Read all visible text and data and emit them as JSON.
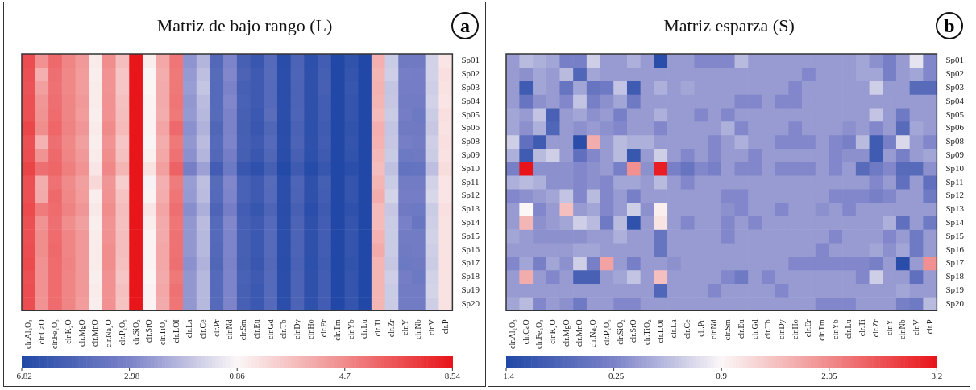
{
  "chart_data": [
    {
      "type": "heatmap",
      "title": "Matriz de bajo rango (L)",
      "annotations": [
        "a"
      ],
      "categories": [
        "clr.Al₂O₃",
        "clr.CaO",
        "clr.Fe₂O₃",
        "clr.K₂O",
        "clr.MgO",
        "clr.MnO",
        "clr.Na₂O",
        "clr.P₂O₅",
        "clr.SiO₂",
        "clr.SrO",
        "clr.TiO₂",
        "clr.LOI",
        "clr.La",
        "clr.Ce",
        "clr.Pr",
        "clr.Nd",
        "clr.Sm",
        "clr.Eu",
        "clr.Gd",
        "clr.Tb",
        "clr.Dy",
        "clr.Ho",
        "clr.Er",
        "clr.Tm",
        "clr.Yb",
        "clr.Lu",
        "clr.Ti",
        "clr.Zr",
        "clr.Y",
        "clr.Nb",
        "clr.V",
        "clr.P"
      ],
      "y_categories": [
        "Sp01",
        "Sp02",
        "Sp03",
        "Sp04",
        "Sp05",
        "Sp06",
        "Sp08",
        "Sp09",
        "Sp10",
        "Sp11",
        "Sp12",
        "Sp13",
        "Sp14",
        "Sp15",
        "Sp16",
        "Sp17",
        "Sp18",
        "Sp19",
        "Sp20"
      ],
      "cells": [
        [
          6.7,
          4.5,
          5.8,
          4.9,
          4.2,
          1.3,
          4.6,
          2.9,
          8.5,
          1.2,
          3.7,
          5.4,
          -2.4,
          -1.3,
          -4.7,
          -2.9,
          -5.2,
          -5.8,
          -4.6,
          -6.5,
          -5.0,
          -6.3,
          -5.4,
          -6.8,
          -6.1,
          -6.8,
          3.4,
          -0.6,
          -3.5,
          -3.5,
          -0.4,
          1.5
        ],
        [
          6.6,
          3.4,
          5.6,
          4.8,
          4.1,
          1.2,
          4.4,
          2.6,
          8.5,
          0.8,
          3.5,
          5.3,
          -2.2,
          -1.0,
          -4.5,
          -2.8,
          -5.0,
          -5.6,
          -4.5,
          -6.4,
          -4.9,
          -6.2,
          -5.3,
          -6.8,
          -6.0,
          -6.8,
          3.2,
          -0.5,
          -3.2,
          -3.3,
          -0.4,
          1.7
        ],
        [
          6.5,
          4.0,
          5.5,
          4.8,
          4.1,
          1.3,
          4.4,
          2.6,
          8.5,
          0.9,
          3.6,
          5.3,
          -2.1,
          -0.8,
          -4.6,
          -3.0,
          -5.2,
          -5.6,
          -4.6,
          -6.4,
          -5.0,
          -6.2,
          -5.2,
          -6.8,
          -5.9,
          -6.8,
          3.3,
          -0.8,
          -3.3,
          -3.3,
          -0.5,
          1.6
        ],
        [
          6.6,
          4.3,
          5.6,
          4.9,
          4.2,
          1.3,
          4.5,
          2.8,
          8.5,
          1.0,
          3.6,
          5.4,
          -2.3,
          -1.1,
          -4.6,
          -2.8,
          -5.1,
          -5.6,
          -4.6,
          -6.4,
          -5.0,
          -6.2,
          -5.4,
          -6.8,
          -6.0,
          -6.8,
          3.2,
          -0.7,
          -3.4,
          -3.4,
          -0.4,
          1.5
        ],
        [
          6.6,
          4.4,
          5.7,
          4.9,
          4.1,
          1.2,
          4.5,
          2.9,
          8.5,
          1.0,
          3.5,
          5.3,
          -2.2,
          -1.2,
          -4.5,
          -3.0,
          -5.2,
          -5.7,
          -4.4,
          -6.4,
          -4.9,
          -6.2,
          -5.4,
          -6.8,
          -6.0,
          -6.8,
          3.0,
          -0.6,
          -3.3,
          -3.6,
          -0.6,
          1.7
        ],
        [
          6.9,
          4.6,
          5.9,
          5.0,
          4.3,
          1.3,
          4.7,
          3.0,
          8.5,
          1.0,
          3.8,
          5.8,
          -2.5,
          -1.4,
          -4.8,
          -3.0,
          -5.3,
          -5.8,
          -4.8,
          -6.5,
          -5.1,
          -6.3,
          -5.5,
          -6.8,
          -6.1,
          -6.8,
          3.4,
          -0.8,
          -3.5,
          -3.5,
          -0.7,
          1.6
        ],
        [
          6.6,
          3.3,
          5.6,
          4.8,
          4.0,
          1.2,
          4.4,
          2.6,
          8.5,
          0.8,
          3.5,
          5.3,
          -2.3,
          -1.1,
          -4.6,
          -2.9,
          -5.2,
          -5.6,
          -4.6,
          -6.4,
          -5.0,
          -6.2,
          -5.4,
          -6.8,
          -6.0,
          -6.8,
          3.3,
          -0.7,
          -3.2,
          -3.4,
          -0.5,
          1.7
        ],
        [
          6.7,
          4.4,
          5.8,
          4.9,
          4.2,
          1.3,
          4.6,
          2.8,
          8.5,
          1.1,
          3.7,
          5.5,
          -2.5,
          -1.3,
          -4.7,
          -3.3,
          -5.3,
          -5.8,
          -4.8,
          -6.5,
          -5.2,
          -6.3,
          -5.6,
          -6.8,
          -6.1,
          -6.8,
          3.1,
          -0.6,
          -3.6,
          -3.5,
          -0.6,
          1.6
        ],
        [
          7.0,
          5.6,
          5.9,
          5.1,
          4.4,
          1.5,
          4.8,
          3.2,
          8.5,
          1.6,
          4.0,
          6.0,
          -3.2,
          -2.0,
          -5.4,
          -3.6,
          -5.8,
          -6.2,
          -5.3,
          -6.7,
          -5.6,
          -6.6,
          -5.9,
          -6.8,
          -6.4,
          -6.8,
          2.9,
          -0.9,
          -4.0,
          -3.9,
          -1.0,
          1.8
        ],
        [
          6.6,
          3.5,
          5.5,
          4.7,
          4.0,
          2.0,
          4.3,
          2.3,
          8.5,
          0.7,
          3.4,
          5.2,
          -2.1,
          -1.0,
          -4.5,
          -2.8,
          -5.1,
          -5.6,
          -4.5,
          -6.4,
          -4.9,
          -6.2,
          -5.3,
          -6.8,
          -6.0,
          -6.8,
          3.2,
          -0.6,
          -3.4,
          -3.4,
          -0.4,
          1.5
        ],
        [
          6.6,
          3.6,
          5.8,
          4.8,
          4.1,
          1.2,
          4.4,
          2.7,
          8.5,
          1.0,
          3.5,
          5.4,
          -2.2,
          -1.1,
          -4.6,
          -2.9,
          -5.1,
          -5.6,
          -4.6,
          -6.4,
          -5.0,
          -6.2,
          -5.4,
          -6.8,
          -6.0,
          -6.8,
          3.5,
          -0.3,
          -3.3,
          -3.3,
          -0.2,
          1.5
        ],
        [
          6.8,
          5.2,
          5.7,
          5.0,
          4.3,
          1.4,
          4.6,
          2.9,
          8.5,
          1.5,
          3.8,
          5.6,
          -2.6,
          -1.5,
          -4.9,
          -3.3,
          -5.4,
          -5.9,
          -4.9,
          -6.5,
          -5.2,
          -6.4,
          -5.6,
          -6.8,
          -6.2,
          -6.8,
          3.0,
          -0.7,
          -3.5,
          -3.6,
          -0.6,
          1.7
        ],
        [
          6.6,
          4.4,
          5.6,
          4.6,
          4.0,
          1.2,
          4.4,
          2.8,
          8.5,
          1.2,
          3.6,
          5.4,
          -2.3,
          -1.1,
          -4.6,
          -2.8,
          -5.2,
          -5.6,
          -4.6,
          -6.4,
          -5.0,
          -6.2,
          -5.4,
          -6.8,
          -6.0,
          -6.8,
          3.0,
          -0.6,
          -3.1,
          -3.8,
          -0.5,
          1.6
        ],
        [
          6.6,
          4.6,
          5.7,
          4.9,
          4.2,
          1.3,
          4.5,
          2.9,
          8.5,
          1.0,
          3.6,
          5.5,
          -2.3,
          -1.2,
          -4.6,
          -2.9,
          -5.2,
          -5.7,
          -4.6,
          -6.4,
          -5.0,
          -6.2,
          -5.4,
          -6.8,
          -6.0,
          -6.8,
          3.3,
          -0.6,
          -3.4,
          -3.4,
          -0.4,
          1.6
        ],
        [
          6.7,
          4.6,
          5.8,
          4.9,
          4.2,
          1.3,
          4.6,
          2.9,
          8.5,
          1.0,
          3.7,
          5.5,
          -2.3,
          -1.2,
          -4.7,
          -2.9,
          -5.2,
          -5.7,
          -4.6,
          -6.4,
          -5.0,
          -6.2,
          -5.4,
          -6.8,
          -6.0,
          -6.8,
          3.6,
          -0.6,
          -3.5,
          -3.4,
          -0.5,
          1.6
        ],
        [
          6.8,
          4.5,
          5.7,
          5.0,
          4.2,
          1.3,
          4.6,
          2.8,
          8.5,
          1.0,
          3.7,
          5.6,
          -2.5,
          -1.4,
          -4.8,
          -3.0,
          -5.3,
          -5.8,
          -4.7,
          -6.5,
          -5.1,
          -6.3,
          -5.5,
          -6.8,
          -6.1,
          -6.8,
          3.2,
          -0.7,
          -3.6,
          -3.5,
          -0.6,
          1.6
        ],
        [
          6.6,
          4.5,
          5.7,
          4.9,
          4.2,
          1.2,
          4.5,
          2.6,
          8.5,
          0.9,
          3.6,
          5.3,
          -2.3,
          -1.2,
          -4.6,
          -2.9,
          -5.1,
          -5.6,
          -4.6,
          -6.4,
          -5.0,
          -6.2,
          -5.4,
          -6.8,
          -6.0,
          -6.8,
          3.2,
          -0.5,
          -3.3,
          -3.6,
          -0.4,
          1.6
        ],
        [
          6.7,
          4.5,
          5.7,
          4.9,
          4.2,
          1.3,
          4.5,
          2.8,
          8.5,
          1.0,
          3.7,
          5.5,
          -2.3,
          -1.2,
          -4.6,
          -2.9,
          -5.2,
          -5.7,
          -4.6,
          -6.4,
          -5.0,
          -6.2,
          -5.4,
          -6.8,
          -6.0,
          -6.8,
          3.2,
          -0.6,
          -3.4,
          -3.4,
          -0.3,
          1.6
        ],
        [
          6.7,
          4.4,
          5.7,
          4.9,
          4.1,
          1.2,
          4.5,
          2.7,
          8.5,
          1.0,
          3.6,
          5.4,
          -2.3,
          -1.2,
          -4.6,
          -2.9,
          -5.2,
          -5.7,
          -4.6,
          -6.4,
          -5.0,
          -6.2,
          -5.4,
          -6.8,
          -6.0,
          -6.8,
          3.2,
          -0.6,
          -3.4,
          -3.4,
          -0.5,
          1.6
        ]
      ],
      "clim": [
        -6.82,
        8.54
      ],
      "cticks": [
        -6.82,
        -2.98,
        0.86,
        4.7,
        8.54
      ]
    },
    {
      "type": "heatmap",
      "title": "Matriz esparza (S)",
      "annotations": [
        "b"
      ],
      "categories": [
        "clr.Al₂O₃",
        "clr.CaO",
        "clr.Fe₂O₃",
        "clr.K₂O",
        "clr.MgO",
        "clr.MnO",
        "clr.Na₂O",
        "clr.P₂O₅",
        "clr.SiO₂",
        "clr.SrO",
        "clr.TiO₂",
        "clr.LOI",
        "clr.La",
        "clr.Ce",
        "clr.Pr",
        "clr.Nd",
        "clr.Sm",
        "clr.Eu",
        "clr.Gd",
        "clr.Tb",
        "clr.Dy",
        "clr.Ho",
        "clr.Er",
        "clr.Tm",
        "clr.Yb",
        "clr.Lu",
        "clr.Ti",
        "clr.Zr",
        "clr.Y",
        "clr.Nb",
        "clr.V",
        "clr.P"
      ],
      "y_categories": [
        "Sp01",
        "Sp02",
        "Sp03",
        "Sp04",
        "Sp05",
        "Sp06",
        "Sp08",
        "Sp09",
        "Sp10",
        "Sp11",
        "Sp12",
        "Sp13",
        "Sp14",
        "Sp15",
        "Sp16",
        "Sp17",
        "Sp18",
        "Sp19",
        "Sp20"
      ],
      "cells": [
        [
          0,
          0.3,
          0.2,
          0.1,
          -0.3,
          -0.3,
          0.5,
          0,
          0,
          0.2,
          0,
          -1.3,
          0,
          0,
          -0.2,
          -0.2,
          -0.2,
          0.3,
          0,
          0,
          0,
          0,
          0,
          0,
          0,
          0,
          0.1,
          -0.1,
          -0.3,
          0,
          0.7,
          -0.2
        ],
        [
          0,
          -0.1,
          0.1,
          0,
          0.3,
          -0.8,
          0.1,
          0,
          0,
          0,
          0,
          0,
          0,
          0,
          0,
          0,
          0,
          0,
          0,
          0,
          0,
          0,
          -0.2,
          0,
          0,
          0,
          0.1,
          0.1,
          -0.3,
          0,
          0.1,
          -0.2
        ],
        [
          0,
          -1.0,
          0.1,
          0,
          -0.5,
          0.1,
          -0.5,
          -0.4,
          0.4,
          -1.0,
          0,
          0.2,
          0,
          0.1,
          0,
          0,
          0,
          0,
          0,
          0,
          0,
          -0.2,
          0,
          0,
          0,
          0,
          0,
          0.5,
          0,
          0,
          -0.7,
          -0.7
        ],
        [
          0,
          -0.5,
          -0.1,
          0,
          -0.2,
          0.4,
          -0.3,
          -0.1,
          0.1,
          -0.4,
          0,
          0,
          0,
          0,
          0,
          0,
          0,
          -0.2,
          -0.2,
          0,
          -0.2,
          -0.2,
          0,
          0,
          0,
          0,
          0,
          0,
          0,
          0,
          0,
          0
        ],
        [
          0.1,
          0,
          0.4,
          -0.9,
          0,
          0.1,
          -0.1,
          0,
          -0.3,
          0,
          0,
          0.2,
          0,
          0,
          -0.2,
          0,
          -0.2,
          0,
          0,
          0,
          0,
          0,
          0,
          0,
          0,
          0,
          0,
          0.4,
          0,
          -0.4,
          0,
          0
        ],
        [
          0.1,
          -0.1,
          0.2,
          -0.8,
          0,
          -0.1,
          0,
          -0.1,
          -0.2,
          0,
          0,
          -0.2,
          0,
          0,
          0,
          0,
          0.2,
          -0.2,
          0,
          0,
          0,
          -0.2,
          0,
          0,
          0,
          -0.1,
          0,
          -0.2,
          0,
          -0.7,
          0.1,
          0
        ],
        [
          0.5,
          -0.6,
          -1.0,
          0,
          0,
          -1.3,
          1.7,
          0,
          0.3,
          0.2,
          0.2,
          0,
          0,
          0,
          0,
          -0.2,
          0,
          0.2,
          0,
          0,
          -0.2,
          -0.2,
          -0.2,
          0,
          -0.2,
          -0.3,
          0.3,
          -1.0,
          -0.3,
          0.6,
          0,
          -0.2
        ],
        [
          0.2,
          -1.0,
          0.3,
          0.5,
          0,
          -0.6,
          -0.2,
          0,
          0.3,
          -1.1,
          0,
          0.5,
          0,
          -0.2,
          0,
          -0.2,
          0,
          0,
          -0.2,
          0,
          0,
          0,
          0,
          0,
          -0.2,
          -0.1,
          -0.1,
          -1.0,
          0,
          -0.3,
          0,
          0.1
        ],
        [
          -0.3,
          3.2,
          -0.1,
          -0.1,
          -0.1,
          -0.2,
          -0.1,
          0,
          -0.3,
          2.0,
          -0.1,
          3.1,
          -0.3,
          -0.5,
          -0.2,
          -0.3,
          0,
          -0.2,
          -0.2,
          0,
          -0.2,
          -0.2,
          -0.2,
          0,
          -0.2,
          0,
          -0.7,
          -0.4,
          -0.2,
          -0.7,
          -0.7,
          -0.1
        ],
        [
          0.2,
          0.3,
          0.2,
          -0.1,
          -0.1,
          -0.2,
          -0.1,
          -0.2,
          0.1,
          0.1,
          0,
          0.3,
          0,
          -0.2,
          0,
          0,
          0,
          0,
          0,
          0,
          0,
          0,
          0,
          0,
          0,
          0,
          0,
          -0.2,
          0,
          -0.6,
          0,
          -0.6
        ],
        [
          -0.2,
          -0.1,
          0,
          0.1,
          0.4,
          -0.2,
          0.3,
          -0.2,
          0,
          -0.3,
          0,
          0,
          0,
          0,
          0,
          0,
          -0.2,
          -0.2,
          0,
          0,
          0,
          0,
          0,
          0,
          -0.2,
          -0.2,
          -0.2,
          -0.3,
          -0.2,
          0,
          0,
          -0.4
        ],
        [
          0,
          0.9,
          -0.2,
          0,
          1.5,
          0,
          0.1,
          -0.2,
          0,
          0.5,
          -0.1,
          1.0,
          0,
          0,
          0,
          0,
          -0.1,
          -0.2,
          0,
          0,
          -0.2,
          0,
          0,
          -0.1,
          0,
          -0.2,
          0,
          0,
          0,
          0,
          0,
          0
        ],
        [
          0,
          1.6,
          -0.1,
          0,
          0.1,
          0.5,
          0.3,
          -0.4,
          0.3,
          -1.2,
          0,
          1.1,
          0,
          -0.2,
          0,
          0,
          -0.2,
          0,
          -0.2,
          0,
          0,
          0,
          0,
          0,
          0,
          0,
          0,
          0,
          0.2,
          -0.6,
          0,
          -0.4
        ],
        [
          0.1,
          0,
          -0.1,
          -0.1,
          -0.1,
          -0.1,
          0,
          0,
          0.2,
          0,
          0,
          -0.5,
          0,
          0,
          0,
          0,
          -0.2,
          0,
          0,
          0,
          0,
          0,
          0,
          0,
          -0.2,
          0,
          0,
          0,
          -0.2,
          0,
          -0.4,
          0
        ],
        [
          0,
          0,
          0,
          0,
          0,
          0.1,
          0.1,
          0,
          0,
          0,
          0,
          -0.5,
          0,
          0,
          0,
          0,
          0,
          0,
          0,
          0,
          0,
          0,
          0,
          -0.2,
          0,
          0,
          0,
          0.1,
          -0.1,
          0.1,
          -0.4,
          0
        ],
        [
          -0.2,
          0.1,
          -0.3,
          0.1,
          -0.1,
          0.5,
          -0.3,
          1.8,
          0,
          -0.3,
          0,
          0,
          -0.1,
          0,
          0,
          0,
          0,
          0,
          0,
          0,
          0,
          -0.2,
          -0.2,
          -0.2,
          -0.2,
          -0.2,
          -0.2,
          -0.3,
          0,
          -1.3,
          0,
          2.0
        ],
        [
          0,
          1.7,
          0,
          -0.2,
          0,
          -0.9,
          -0.9,
          0,
          0.1,
          0.4,
          0,
          1.5,
          0,
          0,
          0,
          0,
          -0.2,
          -0.4,
          0,
          -0.2,
          0,
          0,
          0,
          0,
          0,
          0,
          -0.2,
          0.5,
          0,
          0,
          -0.6,
          0
        ],
        [
          0,
          0,
          0,
          0,
          0,
          0,
          0,
          0,
          0,
          0,
          0,
          -0.8,
          0,
          0,
          0,
          -0.2,
          0,
          0,
          0,
          0,
          -0.2,
          0,
          0,
          0,
          0,
          0,
          0,
          0,
          0,
          0.1,
          0,
          0
        ],
        [
          0.1,
          0.3,
          -0.2,
          0,
          -0.1,
          -0.4,
          0,
          0,
          -0.2,
          -0.2,
          0,
          0,
          0,
          0,
          0,
          0,
          0,
          0,
          0,
          0,
          0,
          0,
          0,
          -0.2,
          -0.2,
          -0.2,
          0,
          0,
          0,
          -0.3,
          -0.4,
          0.3
        ]
      ],
      "clim": [
        -1.4,
        3.2
      ],
      "cticks": [
        -1.4,
        -0.25,
        0.9,
        2.05,
        3.2
      ]
    }
  ]
}
